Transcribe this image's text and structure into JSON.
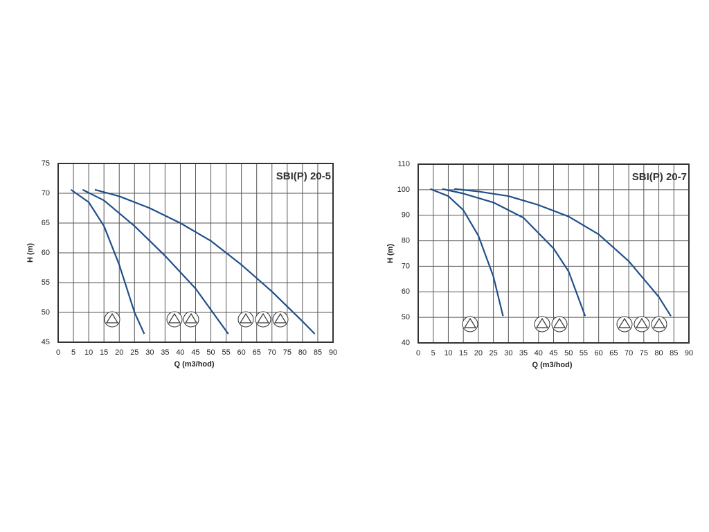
{
  "chart_data": [
    {
      "type": "line",
      "title": "SBI(P) 20-5",
      "xlabel": "Q (m3/hod)",
      "ylabel": "H (m)",
      "xlim": [
        0,
        90
      ],
      "xticks": [
        0,
        5,
        10,
        15,
        20,
        25,
        30,
        35,
        40,
        45,
        50,
        55,
        60,
        65,
        70,
        75,
        80,
        85,
        90
      ],
      "ylim": [
        45,
        75
      ],
      "yticks": [
        45,
        50,
        55,
        60,
        65,
        70,
        75
      ],
      "grid": true,
      "series": [
        {
          "color": "#1f4f8a",
          "x": [
            4.2,
            10,
            15,
            20,
            25,
            28.2
          ],
          "values": [
            70.6,
            68.5,
            64.5,
            58,
            50,
            46.4
          ]
        },
        {
          "color": "#1f4f8a",
          "x": [
            8,
            15,
            25,
            35,
            45,
            55.7
          ],
          "values": [
            70.6,
            68.8,
            64.5,
            59.5,
            54,
            46.4
          ]
        },
        {
          "color": "#1f4f8a",
          "x": [
            12,
            20,
            30,
            40,
            50,
            60,
            70,
            80,
            84
          ],
          "values": [
            70.6,
            69.5,
            67.5,
            65,
            62,
            58,
            53.5,
            48.5,
            46.4
          ]
        }
      ]
    },
    {
      "type": "line",
      "title": "SBI(P) 20-7",
      "xlabel": "Q (m3/hod)",
      "ylabel": "H (m)",
      "xlim": [
        0,
        90
      ],
      "xticks": [
        0,
        5,
        10,
        15,
        20,
        25,
        30,
        35,
        40,
        45,
        50,
        55,
        60,
        65,
        70,
        75,
        80,
        85,
        90
      ],
      "ylim": [
        40,
        110
      ],
      "yticks": [
        40,
        50,
        60,
        70,
        80,
        90,
        100,
        110
      ],
      "grid": true,
      "series": [
        {
          "color": "#1f4f8a",
          "x": [
            4,
            10,
            15,
            20,
            25,
            28.2
          ],
          "values": [
            100.3,
            97.5,
            92,
            82,
            66,
            50.5
          ]
        },
        {
          "color": "#1f4f8a",
          "x": [
            8,
            15,
            25,
            35,
            45,
            50,
            55.5
          ],
          "values": [
            100.3,
            98.5,
            95,
            89,
            77,
            68,
            50.5
          ]
        },
        {
          "color": "#1f4f8a",
          "x": [
            12,
            20,
            30,
            40,
            50,
            60,
            70,
            80,
            84
          ],
          "values": [
            100.3,
            99.3,
            97.5,
            94,
            89.5,
            82.5,
            72,
            58,
            50.5
          ]
        }
      ]
    }
  ]
}
